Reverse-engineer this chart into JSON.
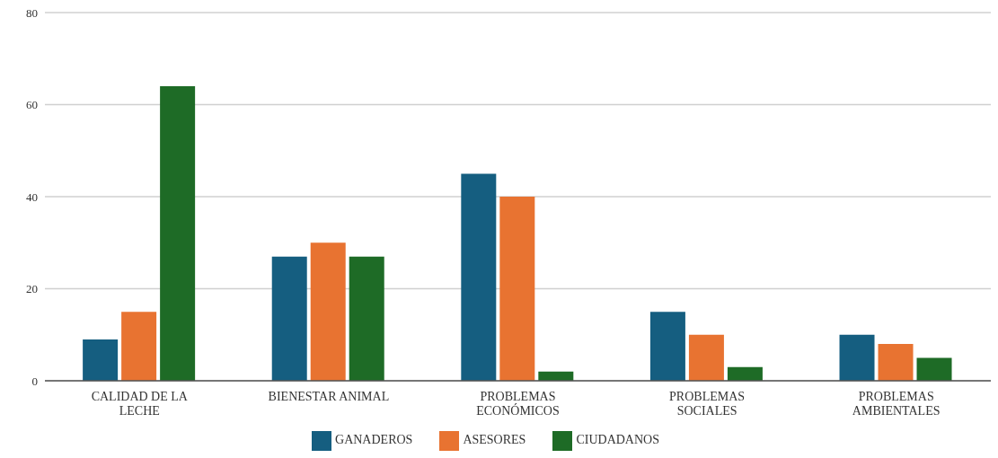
{
  "chart_data": {
    "type": "bar",
    "categories": [
      "CALIDAD DE LA LECHE",
      "BIENESTAR ANIMAL",
      "PROBLEMAS ECONÓMICOS",
      "PROBLEMAS SOCIALES",
      "PROBLEMAS AMBIENTALES"
    ],
    "series": [
      {
        "name": "GANADEROS",
        "color": "#155e80",
        "values": [
          9,
          27,
          45,
          15,
          10
        ]
      },
      {
        "name": "ASESORES",
        "color": "#e87331",
        "values": [
          15,
          30,
          40,
          10,
          8
        ]
      },
      {
        "name": "CIUDADANOS",
        "color": "#1e6b26",
        "values": [
          64,
          27,
          2,
          3,
          5
        ]
      }
    ],
    "ylim": [
      0,
      80
    ],
    "yticks": [
      0,
      20,
      40,
      60,
      80
    ],
    "grid": "y",
    "legend": "bottom"
  }
}
